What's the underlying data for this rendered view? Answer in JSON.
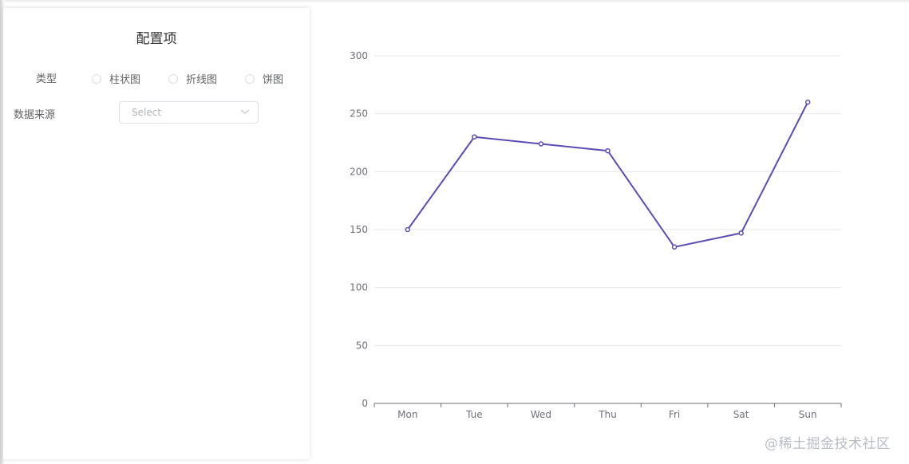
{
  "panel": {
    "title": "配置项",
    "type_label": "类型",
    "type_options": [
      "柱状图",
      "折线图",
      "饼图"
    ],
    "source_label": "数据来源",
    "source_select": {
      "placeholder": "Select",
      "value": ""
    }
  },
  "chart_data": {
    "type": "line",
    "categories": [
      "Mon",
      "Tue",
      "Wed",
      "Thu",
      "Fri",
      "Sat",
      "Sun"
    ],
    "series": [
      {
        "values": [
          150,
          230,
          224,
          218,
          135,
          147,
          260
        ],
        "color": "#5b4db5"
      }
    ],
    "ylim": [
      0,
      300
    ],
    "yticks": [
      0,
      50,
      100,
      150,
      200,
      250,
      300
    ],
    "grid": true,
    "title": "",
    "xlabel": "",
    "ylabel": ""
  },
  "watermark": "@稀土掘金技术社区"
}
